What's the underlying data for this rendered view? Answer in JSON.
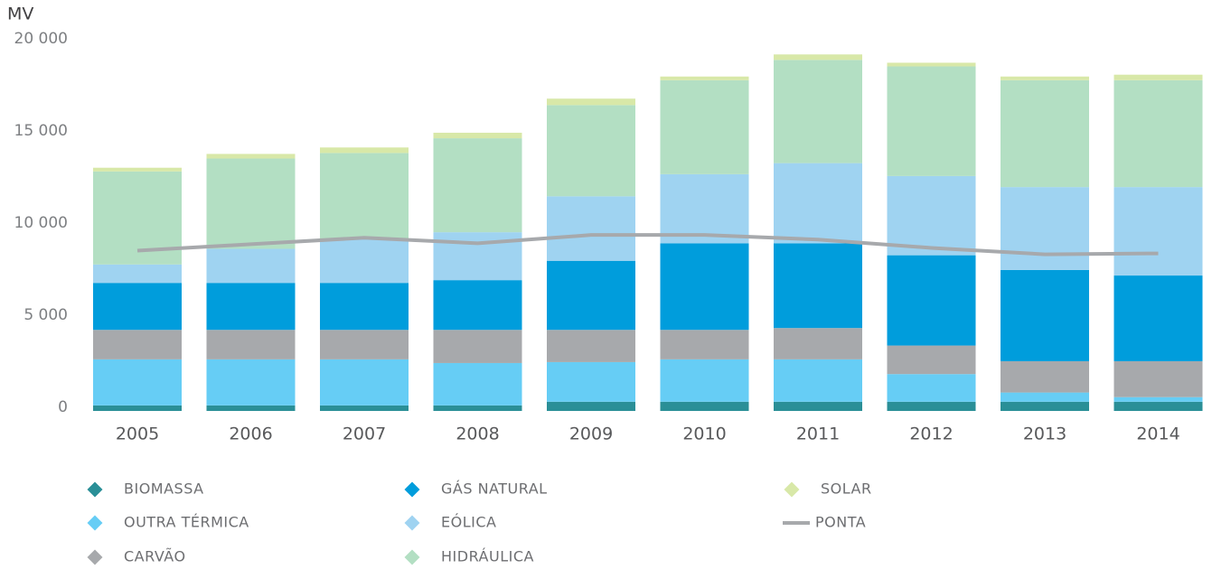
{
  "chart_data": {
    "type": "bar",
    "stacked": true,
    "ylabel": "MV",
    "categories": [
      "2005",
      "2006",
      "2007",
      "2008",
      "2009",
      "2010",
      "2011",
      "2012",
      "2013",
      "2014"
    ],
    "ylim": [
      0,
      20000
    ],
    "yticks": [
      0,
      {
        "value": 5000,
        "label": "5 000"
      },
      {
        "value": 10000,
        "label": "10 000"
      },
      {
        "value": 15000,
        "label": "15 000"
      },
      {
        "value": 20000,
        "label": "20 000"
      }
    ],
    "grid": false,
    "series": [
      {
        "name": "BIOMASSA",
        "color": "#2a8f97",
        "values": [
          300,
          300,
          300,
          300,
          500,
          500,
          500,
          500,
          500,
          500
        ]
      },
      {
        "name": "OUTRA TÉRMICA",
        "color": "#66cdf5",
        "values": [
          2500,
          2500,
          2500,
          2300,
          2150,
          2300,
          2300,
          1500,
          500,
          250
        ]
      },
      {
        "name": "CARVÃO",
        "color": "#a7a9ac",
        "values": [
          1600,
          1600,
          1600,
          1800,
          1750,
          1600,
          1700,
          1550,
          1700,
          1950
        ]
      },
      {
        "name": "GÁS NATURAL",
        "color": "#009ddc",
        "values": [
          2550,
          2550,
          2550,
          2700,
          3750,
          4700,
          4600,
          4900,
          4950,
          4650
        ]
      },
      {
        "name": "EÓLICA",
        "color": "#9fd3f1",
        "values": [
          1000,
          1850,
          2400,
          2600,
          3500,
          3750,
          4350,
          4300,
          4500,
          4800
        ]
      },
      {
        "name": "HIDRÁULICA",
        "color": "#b3dfc3",
        "values": [
          5050,
          4900,
          4650,
          5100,
          4950,
          5100,
          5600,
          5950,
          5800,
          5800
        ]
      },
      {
        "name": "SOLAR",
        "color": "#d8e8a8",
        "values": [
          200,
          250,
          300,
          300,
          350,
          200,
          300,
          200,
          200,
          300
        ]
      },
      {
        "name": "PONTA",
        "color": "#a7a9ac",
        "type": "line",
        "values": [
          8700,
          9050,
          9400,
          9100,
          9550,
          9550,
          9300,
          8850,
          8500,
          8550
        ]
      }
    ]
  }
}
